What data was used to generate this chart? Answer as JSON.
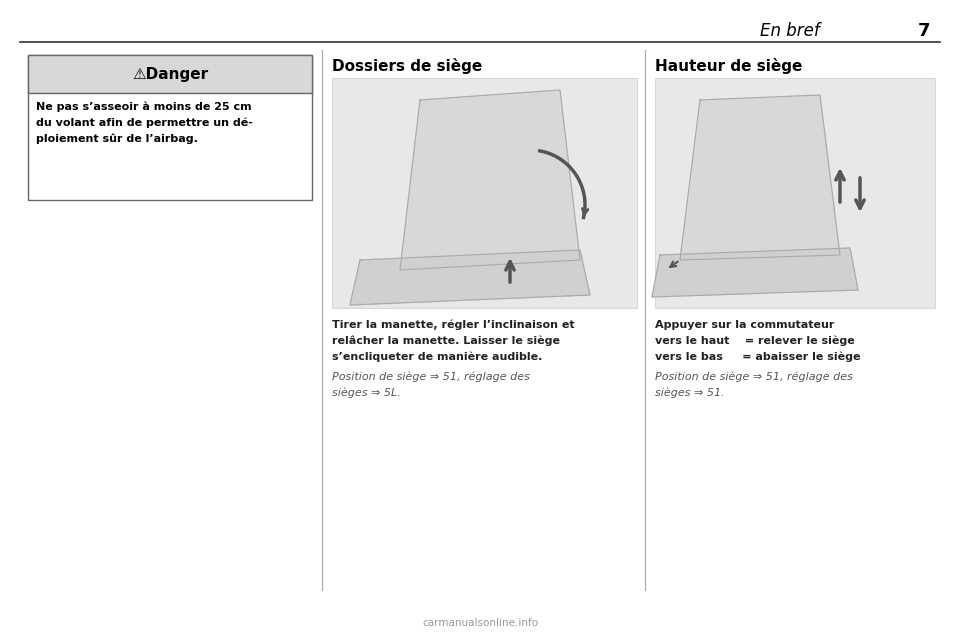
{
  "page_bg": "#ffffff",
  "outer_bg": "#ffffff",
  "header_text": "En bref",
  "page_number": "7",
  "danger_header_bg": "#d8d8d8",
  "danger_border": "#555555",
  "danger_title": "⚠Danger",
  "danger_body_line1": "Ne pas s’asseoir à moins de 25 cm",
  "danger_body_line2": "du volant afin de permettre un dé-",
  "danger_body_line3": "ploiement sûr de l’airbag.",
  "col2_title": "Dossiers de siège",
  "col2_body_line1": "Tirer la manette, régler l’inclinaison et",
  "col2_body_line2": "relâcher la manette. Laisser le siège",
  "col2_body_line3": "s’encliqueter de manière audible.",
  "col2_ref_line1": "Position de siège ⇒ 51, réglage des",
  "col2_ref_line2": "sièges ⇒ 5L.",
  "col3_title": "Hauteur de siège",
  "col3_body_line1": "Appuyer sur la commutateur",
  "col3_body_line2": "vers le haut    = relever le siège",
  "col3_body_line3": "vers le bas     = abaisser le siège",
  "col3_ref_line1": "Position de siège ⇒ 51, réglage des",
  "col3_ref_line2": "sièges ⇒ 51.",
  "watermark": "carmanualsonline.info",
  "img2_bg": "#e8e8e8",
  "img3_bg": "#e8e8e8",
  "col_div_color": "#aaaaaa",
  "text_bold_color": "#222222",
  "text_italic_color": "#555555",
  "header_line_color": "#333333"
}
